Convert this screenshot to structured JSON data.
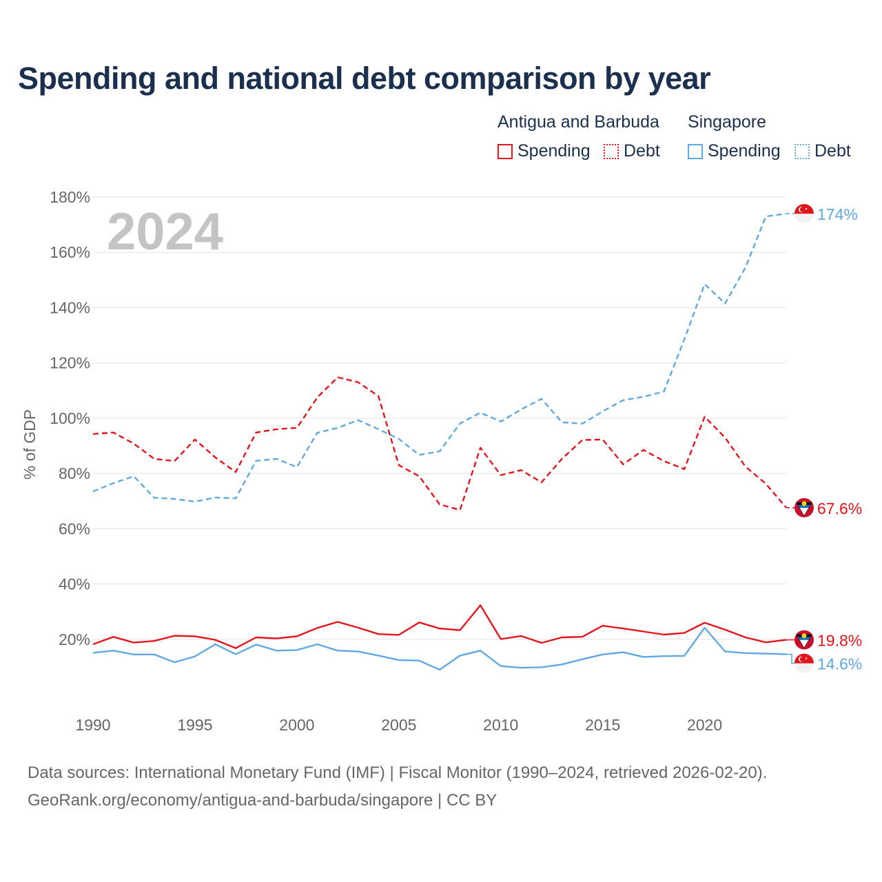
{
  "title": "Spending and national debt comparison by year",
  "legend": {
    "groups": [
      {
        "name": "Antigua and Barbuda",
        "color": "#e4141b",
        "items": [
          {
            "label": "Spending",
            "style": "solid"
          },
          {
            "label": "Debt",
            "style": "dotted"
          }
        ]
      },
      {
        "name": "Singapore",
        "color": "#5ea8e4",
        "items": [
          {
            "label": "Spending",
            "style": "solid"
          },
          {
            "label": "Debt",
            "style": "dotted"
          }
        ]
      }
    ]
  },
  "chart_data": {
    "type": "line",
    "year_watermark": "2024",
    "ylabel": "% of GDP",
    "ylim": [
      0,
      180
    ],
    "xlim": [
      1990,
      2024
    ],
    "y_ticks": [
      20,
      40,
      60,
      80,
      100,
      120,
      140,
      160,
      180
    ],
    "y_tick_labels": [
      "20%",
      "40%",
      "60%",
      "80%",
      "100%",
      "120%",
      "140%",
      "160%",
      "180%"
    ],
    "x_ticks": [
      1990,
      1995,
      2000,
      2005,
      2010,
      2015,
      2020
    ],
    "x_tick_labels": [
      "1990",
      "1995",
      "2000",
      "2005",
      "2010",
      "2015",
      "2020"
    ],
    "x": [
      1990,
      1991,
      1992,
      1993,
      1994,
      1995,
      1996,
      1997,
      1998,
      1999,
      2000,
      2001,
      2002,
      2003,
      2004,
      2005,
      2006,
      2007,
      2008,
      2009,
      2010,
      2011,
      2012,
      2013,
      2014,
      2015,
      2016,
      2017,
      2018,
      2019,
      2020,
      2021,
      2022,
      2023,
      2024
    ],
    "series": [
      {
        "name": "Singapore Debt",
        "country": "Singapore",
        "metric": "Debt",
        "color": "#5ea8e4",
        "dash": true,
        "end_label": "174%",
        "end_value": 174,
        "flag": "singapore",
        "values": [
          73.5,
          76.5,
          79,
          71.2,
          70.8,
          69.8,
          71.3,
          71,
          84.6,
          85.3,
          82.3,
          94.7,
          96.5,
          99.3,
          96,
          92.5,
          86.7,
          88,
          98.1,
          102,
          98.8,
          103.2,
          107,
          98.5,
          98,
          102.5,
          106.5,
          107.8,
          109.6,
          128.5,
          148.5,
          141.5,
          154.5,
          173,
          174
        ]
      },
      {
        "name": "Antigua and Barbuda Debt",
        "country": "Antigua and Barbuda",
        "metric": "Debt",
        "color": "#e4141b",
        "dash": true,
        "end_label": "67.6%",
        "end_value": 67.6,
        "flag": "antigua",
        "values": [
          94.3,
          94.8,
          90.8,
          85.3,
          84.5,
          92.3,
          85.8,
          80.5,
          94.8,
          96,
          96.5,
          107.5,
          114.8,
          113,
          108,
          83,
          79,
          68.8,
          66.8,
          89.3,
          79.4,
          81.2,
          76.8,
          85.3,
          92.1,
          92.3,
          83.3,
          88.5,
          84.5,
          81.6,
          100.5,
          93,
          82.5,
          76.3,
          67.6
        ]
      },
      {
        "name": "Antigua and Barbuda Spending",
        "country": "Antigua and Barbuda",
        "metric": "Spending",
        "color": "#e4141b",
        "dash": false,
        "end_label": "19.8%",
        "end_value": 19.8,
        "flag": "antigua",
        "values": [
          18.2,
          20.9,
          18.8,
          19.4,
          21.3,
          21.1,
          19.8,
          16.8,
          20.7,
          20.3,
          21.1,
          24.1,
          26.3,
          24.2,
          21.9,
          21.6,
          26.1,
          23.9,
          23.3,
          32.3,
          20.1,
          21.2,
          18.7,
          20.7,
          20.9,
          24.9,
          23.9,
          22.8,
          21.7,
          22.3,
          26,
          23.5,
          20.7,
          18.9,
          19.8
        ]
      },
      {
        "name": "Singapore Spending",
        "country": "Singapore",
        "metric": "Spending",
        "color": "#5ea8e4",
        "dash": false,
        "end_label": "14.6%",
        "end_value": 14.6,
        "flag": "singapore",
        "values": [
          15.1,
          15.9,
          14.5,
          14.5,
          11.7,
          13.8,
          18.2,
          14.6,
          18.1,
          15.9,
          16.1,
          18.2,
          15.9,
          15.6,
          14.1,
          12.5,
          12.3,
          9,
          14.1,
          15.9,
          10.3,
          9.7,
          9.9,
          10.9,
          12.8,
          14.5,
          15.3,
          13.6,
          13.9,
          14,
          24.2,
          15.6,
          15,
          14.8,
          14.6
        ]
      }
    ]
  },
  "footer": {
    "line1": "Data sources: International Monetary Fund (IMF) | Fiscal Monitor (1990–2024, retrieved 2026-02-20).",
    "line2": "GeoRank.org/economy/antigua-and-barbuda/singapore | CC BY"
  }
}
